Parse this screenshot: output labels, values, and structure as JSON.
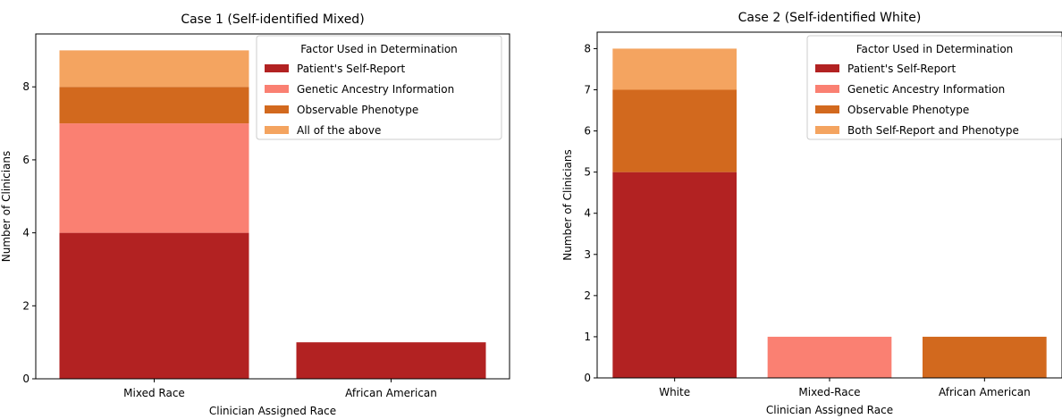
{
  "chart_data": [
    {
      "type": "bar",
      "stacked": true,
      "title": "Case 1 (Self-identified Mixed)",
      "xlabel": "Clinician Assigned Race",
      "ylabel": "Number of Clinicians",
      "categories": [
        "Mixed Race",
        "African American"
      ],
      "ylim": [
        0,
        9.45
      ],
      "yticks": [
        0,
        2,
        4,
        6,
        8
      ],
      "legend": {
        "title": "Factor Used in Determination",
        "placement": "top-right"
      },
      "series": [
        {
          "name": "Patient's Self-Report",
          "color": "#b22222",
          "values": [
            4,
            1
          ]
        },
        {
          "name": "Genetic Ancestry Information",
          "color": "#fa8072",
          "values": [
            3,
            0
          ]
        },
        {
          "name": "Observable Phenotype",
          "color": "#d2691e",
          "values": [
            1,
            0
          ]
        },
        {
          "name": "All of the above",
          "color": "#f4a460",
          "values": [
            1,
            0
          ]
        }
      ]
    },
    {
      "type": "bar",
      "stacked": true,
      "title": "Case 2 (Self-identified White)",
      "xlabel": "Clinician Assigned Race",
      "ylabel": "Number of Clinicians",
      "categories": [
        "White",
        "Mixed-Race",
        "African American"
      ],
      "ylim": [
        0,
        8.4
      ],
      "yticks": [
        0,
        1,
        2,
        3,
        4,
        5,
        6,
        7,
        8
      ],
      "legend": {
        "title": "Factor Used in Determination",
        "placement": "top-right"
      },
      "series": [
        {
          "name": "Patient's Self-Report",
          "color": "#b22222",
          "values": [
            5,
            0,
            0
          ]
        },
        {
          "name": "Genetic Ancestry Information",
          "color": "#fa8072",
          "values": [
            0,
            1,
            0
          ]
        },
        {
          "name": "Observable Phenotype",
          "color": "#d2691e",
          "values": [
            2,
            0,
            1
          ]
        },
        {
          "name": "Both Self-Report and Phenotype",
          "color": "#f4a460",
          "values": [
            1,
            0,
            0
          ]
        }
      ]
    }
  ]
}
